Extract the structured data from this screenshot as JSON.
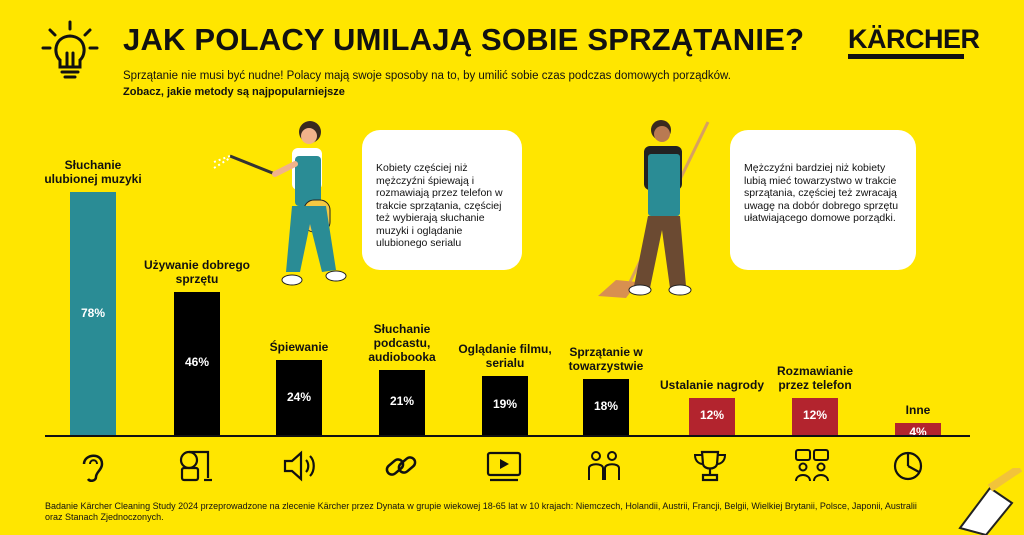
{
  "header": {
    "title": "JAK POLACY UMILAJĄ SOBIE SPRZĄTANIE?",
    "subtitle": "Sprzątanie nie musi być nudne! Polacy mają swoje sposoby na to, by umilić sobie czas podczas domowych porządków.",
    "subtitle_bold": "Zobacz, jakie metody są najpopularniejsze",
    "brand": "KÄRCHER"
  },
  "bubbles": {
    "women": "Kobiety częściej niż mężczyźni śpiewają i rozmawiają przez telefon w trakcie sprzątania, częściej też wybierają słuchanie muzyki i oglądanie ulubionego serialu",
    "men": "Mężczyźni bardziej niż kobiety lubią mieć towarzystwo w trakcie sprzątania, częściej też zwracają uwagę na dobór dobrego sprzętu ułatwiającego domowe porządki."
  },
  "chart_data": {
    "type": "bar",
    "categories": [
      "Słuchanie ulubionej muzyki",
      "Używanie dobrego sprzętu",
      "Śpiewanie",
      "Słuchanie podcastu, audiobooka",
      "Oglądanie filmu, serialu",
      "Sprzątanie w towarzystwie",
      "Ustalanie nagrody",
      "Rozmawianie przez telefon",
      "Inne"
    ],
    "values": [
      78,
      46,
      24,
      21,
      19,
      18,
      12,
      12,
      4
    ],
    "value_labels": [
      "78%",
      "46%",
      "24%",
      "21%",
      "19%",
      "18%",
      "12%",
      "12%",
      "4%"
    ],
    "bar_colors": [
      "#2A8C95",
      "#000000",
      "#000000",
      "#000000",
      "#000000",
      "#000000",
      "#B3242E",
      "#B3242E",
      "#B3242E"
    ],
    "icons": [
      "ear-icon",
      "vacuum-cleaner-icon",
      "speaker-icon",
      "link-icon",
      "video-player-icon",
      "people-icon",
      "trophy-icon",
      "chat-people-icon",
      "pie-chart-icon"
    ],
    "ylim": [
      0,
      80
    ],
    "grid": false,
    "legend": "none"
  },
  "footer": {
    "note": "Badanie Kärcher Cleaning Study 2024 przeprowadzone na zlecenie Kärcher przez Dynata w grupie wiekowej 18-65 lat w 10 krajach: Niemczech, Holandii, Austrii, Francji, Belgii, Wielkiej Brytanii, Polsce, Japonii, Australii oraz Stanach Zjednoczonych."
  }
}
